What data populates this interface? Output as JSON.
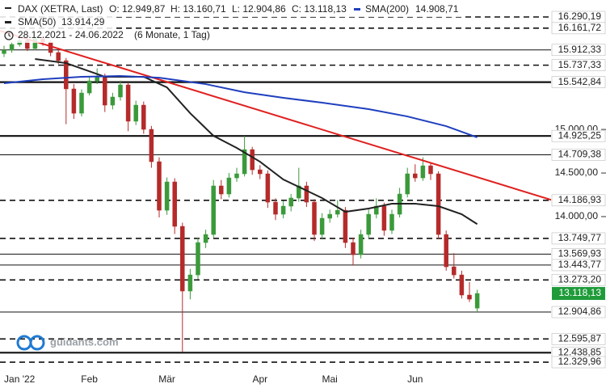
{
  "chart_data": {
    "type": "candlestick",
    "title": "DAX (XETRA, Last)",
    "ohlc_labels": [
      "O: 12.949,87",
      "H: 13.160,71",
      "L: 12.904,86",
      "C: 13.118,13"
    ],
    "subtitle": "28.12.2021 - 24.06.2022",
    "period": "(6 Monate, 1 Tag)",
    "watermark": "guidants.com",
    "up_color": "#3a9a3a",
    "down_color": "#b52a2a",
    "categories": [
      null,
      null,
      "Jan '22",
      null,
      null,
      null,
      null,
      null,
      null,
      null,
      null,
      "Feb",
      null,
      null,
      null,
      null,
      null,
      null,
      null,
      null,
      null,
      "Mär",
      null,
      null,
      null,
      null,
      null,
      null,
      null,
      null,
      null,
      null,
      null,
      "Apr",
      null,
      null,
      null,
      null,
      null,
      null,
      null,
      null,
      "Mai",
      null,
      null,
      null,
      null,
      null,
      null,
      null,
      null,
      null,
      null,
      "Jun",
      null,
      null,
      null,
      null,
      null,
      null,
      null,
      null
    ],
    "candles": [
      [
        15870,
        15960,
        15830,
        15910
      ],
      [
        15910,
        16010,
        15880,
        15975
      ],
      [
        15975,
        16080,
        15950,
        16021
      ],
      [
        16021,
        16050,
        15900,
        15928
      ],
      [
        15928,
        16090,
        15910,
        16040
      ],
      [
        16040,
        16070,
        15960,
        16002
      ],
      [
        16002,
        16030,
        15840,
        15882
      ],
      [
        15882,
        15930,
        15750,
        15789
      ],
      [
        15789,
        15820,
        15060,
        15465
      ],
      [
        15465,
        15520,
        15120,
        15186
      ],
      [
        15186,
        15460,
        15150,
        15418
      ],
      [
        15418,
        15610,
        15390,
        15557
      ],
      [
        15557,
        15700,
        15520,
        15604
      ],
      [
        15604,
        15640,
        15200,
        15279
      ],
      [
        15279,
        15420,
        15230,
        15372
      ],
      [
        15372,
        15560,
        15330,
        15511
      ],
      [
        15511,
        15540,
        14980,
        15094
      ],
      [
        15094,
        15330,
        15050,
        15279
      ],
      [
        15279,
        15320,
        14950,
        15001
      ],
      [
        15001,
        15040,
        14560,
        14630
      ],
      [
        14630,
        14680,
        13990,
        14073
      ],
      [
        14073,
        14450,
        14020,
        14398
      ],
      [
        14398,
        14440,
        13800,
        13888
      ],
      [
        13888,
        13930,
        12450,
        13146
      ],
      [
        13146,
        13400,
        13050,
        13331
      ],
      [
        13331,
        13760,
        13280,
        13702
      ],
      [
        13702,
        13850,
        13640,
        13795
      ],
      [
        13795,
        14420,
        13760,
        14352
      ],
      [
        14352,
        14420,
        14200,
        14259
      ],
      [
        14259,
        14500,
        14220,
        14444
      ],
      [
        14444,
        14560,
        14400,
        14491
      ],
      [
        14491,
        14925,
        14460,
        14769
      ],
      [
        14769,
        14800,
        14480,
        14537
      ],
      [
        14537,
        14590,
        14430,
        14491
      ],
      [
        14491,
        14530,
        14100,
        14166
      ],
      [
        14166,
        14210,
        13960,
        14027
      ],
      [
        14027,
        14180,
        13980,
        14120
      ],
      [
        14120,
        14260,
        14060,
        14213
      ],
      [
        14213,
        14560,
        14170,
        14352
      ],
      [
        14352,
        14400,
        14110,
        14166
      ],
      [
        14166,
        14200,
        13720,
        13795
      ],
      [
        13795,
        14040,
        13750,
        13981
      ],
      [
        13981,
        14080,
        13930,
        14027
      ],
      [
        14027,
        14190,
        13990,
        14073
      ],
      [
        14073,
        14110,
        13640,
        13702
      ],
      [
        13702,
        13760,
        13440,
        13563
      ],
      [
        13563,
        13850,
        13520,
        13795
      ],
      [
        13795,
        14080,
        13750,
        14027
      ],
      [
        14027,
        14210,
        13980,
        14120
      ],
      [
        14120,
        14160,
        13780,
        13842
      ],
      [
        13842,
        14080,
        13800,
        14027
      ],
      [
        14027,
        14330,
        13990,
        14259
      ],
      [
        14259,
        14560,
        14220,
        14491
      ],
      [
        14491,
        14600,
        14400,
        14444
      ],
      [
        14444,
        14680,
        14410,
        14583
      ],
      [
        14583,
        14620,
        14420,
        14491
      ],
      [
        14491,
        14520,
        13740,
        13795
      ],
      [
        13795,
        13840,
        13380,
        13424
      ],
      [
        13424,
        13580,
        13290,
        13331
      ],
      [
        13331,
        13380,
        13060,
        13100
      ],
      [
        13100,
        13250,
        13020,
        13053
      ],
      [
        12949.87,
        13160.71,
        12904.86,
        13118.13
      ]
    ],
    "series": [
      {
        "name": "SMA(50)",
        "color": "#222222",
        "last_label": "13.914,29",
        "x": [
          4,
          8,
          13,
          18,
          21,
          24,
          27,
          30,
          33,
          36,
          41,
          44,
          47,
          50,
          53,
          56,
          59,
          61
        ],
        "values": [
          15808,
          15761,
          15604,
          15604,
          15483,
          15186,
          14927,
          14788,
          14630,
          14426,
          14213,
          14055,
          14092,
          14148,
          14148,
          14120,
          14027,
          13914
        ]
      },
      {
        "name": "SMA(200)",
        "color": "#1f3fbf",
        "last_label": "14.908,71",
        "x": [
          0,
          5,
          10,
          15,
          20,
          26,
          31,
          36,
          41,
          47,
          52,
          57,
          61
        ],
        "values": [
          15530,
          15576,
          15604,
          15613,
          15594,
          15520,
          15427,
          15363,
          15307,
          15233,
          15149,
          15038,
          14909
        ]
      }
    ],
    "trendline": {
      "color": "#e02020",
      "x": [
        -0.5,
        77.6
      ],
      "values": [
        16132,
        13999
      ]
    },
    "ylim": [
      12219,
      16485
    ],
    "yticks": [
      {
        "value": 15000,
        "label": "15.000,00"
      },
      {
        "value": 14500,
        "label": "14.500,00"
      },
      {
        "value": 14000,
        "label": "14.000,00"
      }
    ],
    "levels": [
      {
        "value": 16290.19,
        "label": "16.290,19",
        "style": "dashed"
      },
      {
        "value": 16161.72,
        "label": "16.161,72",
        "style": "dashed"
      },
      {
        "value": 15912.33,
        "label": "15.912,33",
        "style": "solid"
      },
      {
        "value": 15737.33,
        "label": "15.737,33",
        "style": "dashed"
      },
      {
        "value": 15542.84,
        "label": "15.542,84",
        "style": "thick"
      },
      {
        "value": 14925.25,
        "label": "14.925,25",
        "style": "thick"
      },
      {
        "value": 14709.38,
        "label": "14.709,38",
        "style": "solid"
      },
      {
        "value": 14186.93,
        "label": "14.186,93",
        "style": "dashed"
      },
      {
        "value": 13749.77,
        "label": "13.749,77",
        "style": "dashed"
      },
      {
        "value": 13569.93,
        "label": "13.569,93",
        "style": "solid"
      },
      {
        "value": 13443.77,
        "label": "13.443,77",
        "style": "solid"
      },
      {
        "value": 13273.2,
        "label": "13.273,20",
        "style": "dashed"
      },
      {
        "value": 12904.86,
        "label": "12.904,86",
        "style": "solid"
      },
      {
        "value": 12595.87,
        "label": "12.595,87",
        "style": "dashed"
      },
      {
        "value": 12438.85,
        "label": "12.438,85",
        "style": "thick"
      },
      {
        "value": 12329.96,
        "label": "12.329,96",
        "style": "dashed"
      }
    ],
    "last_price": {
      "value": 13118.13,
      "label": "13.118,13",
      "color": "#1f9b3a"
    }
  }
}
